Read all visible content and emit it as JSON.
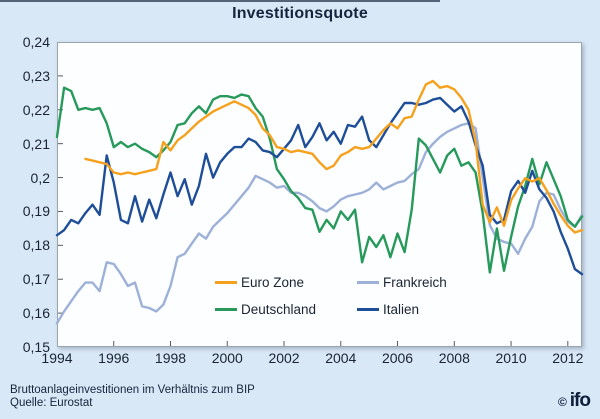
{
  "figure": {
    "title": "Investitionsquote",
    "footnote_line1": "Bruttoanlageinvestitionen im Verhältnis zum BIP",
    "footnote_line2": "Quelle: Eurostat",
    "logo_copyright": "©",
    "logo_text": "ifo"
  },
  "colors": {
    "background": "#D9E8F6",
    "plot_background": "#FDFEFF",
    "plot_border": "#9AA4AC",
    "text": "#1A2433",
    "euro_zone": "#F5A11D",
    "frankreich": "#9DB1D8",
    "deutschland": "#26995B",
    "italien": "#1F4E99"
  },
  "chart_data": {
    "type": "line",
    "title": "Investitionsquote",
    "x_unit": "quarterly",
    "x_start_year": 1994,
    "x_end_label": 2012,
    "x_tick_years": [
      1994,
      1996,
      1998,
      2000,
      2002,
      2004,
      2006,
      2008,
      2010,
      2012
    ],
    "ylim": [
      0.15,
      0.24
    ],
    "grid": false,
    "legend_position": "inside-bottom-center",
    "y_ticks": [
      {
        "label": "0,24",
        "value": 0.24
      },
      {
        "label": "0,23",
        "value": 0.23
      },
      {
        "label": "0,22",
        "value": 0.22
      },
      {
        "label": "0,21",
        "value": 0.21
      },
      {
        "label": "0,2",
        "value": 0.2
      },
      {
        "label": "0,19",
        "value": 0.19
      },
      {
        "label": "0,18",
        "value": 0.18
      },
      {
        "label": "0,17",
        "value": 0.17
      },
      {
        "label": "0,16",
        "value": 0.16
      },
      {
        "label": "0,15",
        "value": 0.15
      }
    ],
    "legend": [
      {
        "label": "Euro Zone",
        "series": "Euro Zone",
        "row": 0,
        "col": 0
      },
      {
        "label": "Frankreich",
        "series": "Frankreich",
        "row": 0,
        "col": 1
      },
      {
        "label": "Deutschland",
        "series": "Deutschland",
        "row": 1,
        "col": 0
      },
      {
        "label": "Italien",
        "series": "Italien",
        "row": 1,
        "col": 1
      }
    ],
    "series": [
      {
        "name": "Frankreich",
        "color": "#9DB1D8",
        "values": [
          0.157,
          0.1605,
          0.1635,
          0.1665,
          0.169,
          0.169,
          0.1665,
          0.175,
          0.1745,
          0.1715,
          0.168,
          0.169,
          0.162,
          0.1615,
          0.1605,
          0.1625,
          0.168,
          0.1765,
          0.1775,
          0.1805,
          0.1835,
          0.182,
          0.1855,
          0.1875,
          0.1895,
          0.192,
          0.1945,
          0.197,
          0.2005,
          0.1995,
          0.1985,
          0.197,
          0.1975,
          0.1955,
          0.1955,
          0.1945,
          0.193,
          0.191,
          0.19,
          0.1915,
          0.1935,
          0.1945,
          0.195,
          0.1955,
          0.1965,
          0.1985,
          0.1965,
          0.1975,
          0.1985,
          0.199,
          0.201,
          0.2025,
          0.2075,
          0.21,
          0.212,
          0.2135,
          0.2145,
          0.2155,
          0.216,
          0.2145,
          0.2,
          0.186,
          0.182,
          0.181,
          0.1805,
          0.1775,
          0.182,
          0.1855,
          0.193,
          0.1955,
          0.195,
          0.1905,
          0.187,
          0.1855,
          0.189
        ]
      },
      {
        "name": "Deutschland",
        "color": "#26995B",
        "values": [
          0.212,
          0.2265,
          0.2255,
          0.22,
          0.2205,
          0.22,
          0.2205,
          0.216,
          0.209,
          0.2105,
          0.209,
          0.21,
          0.2085,
          0.2075,
          0.206,
          0.208,
          0.2105,
          0.2155,
          0.216,
          0.219,
          0.221,
          0.219,
          0.223,
          0.224,
          0.224,
          0.2235,
          0.2245,
          0.224,
          0.2205,
          0.218,
          0.2115,
          0.2025,
          0.1995,
          0.196,
          0.194,
          0.191,
          0.1905,
          0.184,
          0.1875,
          0.185,
          0.19,
          0.1875,
          0.1905,
          0.175,
          0.1825,
          0.1795,
          0.183,
          0.1765,
          0.1835,
          0.178,
          0.1905,
          0.2115,
          0.2095,
          0.2055,
          0.2015,
          0.2065,
          0.2085,
          0.2035,
          0.2045,
          0.2015,
          0.1895,
          0.172,
          0.185,
          0.1725,
          0.1825,
          0.1915,
          0.1975,
          0.2055,
          0.198,
          0.2045,
          0.1995,
          0.1945,
          0.1875,
          0.1855,
          0.1885
        ]
      },
      {
        "name": "Italien",
        "color": "#1F4E99",
        "values": [
          0.183,
          0.1845,
          0.1875,
          0.1865,
          0.1895,
          0.192,
          0.189,
          0.2065,
          0.1985,
          0.1875,
          0.1865,
          0.1945,
          0.187,
          0.1935,
          0.188,
          0.195,
          0.2015,
          0.1945,
          0.1995,
          0.192,
          0.1975,
          0.207,
          0.2,
          0.2045,
          0.207,
          0.209,
          0.209,
          0.2115,
          0.2105,
          0.208,
          0.2075,
          0.206,
          0.2085,
          0.211,
          0.2155,
          0.209,
          0.212,
          0.216,
          0.211,
          0.2135,
          0.21,
          0.2155,
          0.215,
          0.218,
          0.211,
          0.209,
          0.2125,
          0.216,
          0.219,
          0.222,
          0.222,
          0.2215,
          0.222,
          0.223,
          0.2235,
          0.2215,
          0.2195,
          0.221,
          0.2165,
          0.2095,
          0.2035,
          0.189,
          0.1865,
          0.1875,
          0.196,
          0.199,
          0.1955,
          0.202,
          0.1965,
          0.194,
          0.19,
          0.184,
          0.179,
          0.173,
          0.1715
        ]
      },
      {
        "name": "Euro Zone",
        "color": "#F5A11D",
        "values": [
          null,
          null,
          null,
          null,
          0.2055,
          0.205,
          0.2045,
          0.204,
          0.2015,
          0.201,
          0.2015,
          0.201,
          0.2015,
          0.202,
          0.2025,
          0.2105,
          0.208,
          0.211,
          0.2125,
          0.2145,
          0.2165,
          0.218,
          0.2195,
          0.2205,
          0.2215,
          0.2225,
          0.2215,
          0.2205,
          0.2185,
          0.2145,
          0.2125,
          0.209,
          0.2085,
          0.2075,
          0.208,
          0.2075,
          0.207,
          0.2045,
          0.2025,
          0.2035,
          0.2065,
          0.2075,
          0.209,
          0.2085,
          0.209,
          0.2115,
          0.214,
          0.216,
          0.2145,
          0.2175,
          0.218,
          0.223,
          0.2275,
          0.2285,
          0.2265,
          0.227,
          0.226,
          0.2235,
          0.22,
          0.2105,
          0.192,
          0.1868,
          0.1912,
          0.1858,
          0.1933,
          0.1968,
          0.1998,
          0.1988,
          0.1998,
          0.1963,
          0.1923,
          0.1888,
          0.1858,
          0.1838,
          0.1845
        ]
      }
    ]
  }
}
